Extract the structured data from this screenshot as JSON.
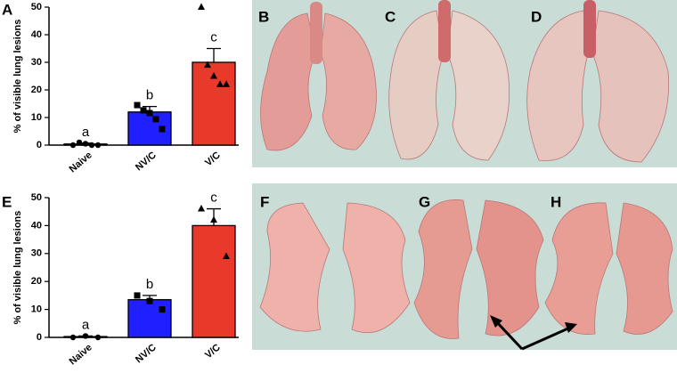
{
  "chart_data": [
    {
      "type": "bar",
      "panel_label": "A",
      "ylabel": "% of visible lung lesions",
      "categories": [
        "Naive",
        "NV/C",
        "V/C"
      ],
      "values": [
        0.4,
        12,
        30
      ],
      "errors": [
        0.3,
        2,
        5
      ],
      "colors": [
        "#ffffff",
        "#1f1fff",
        "#e8392a"
      ],
      "markers": [
        "circle",
        "square",
        "triangle"
      ],
      "letters": [
        "a",
        "b",
        "c"
      ],
      "points": [
        [
          0,
          1,
          0.5,
          0,
          0
        ],
        [
          14.5,
          12.6,
          11.6,
          9.4,
          5.8
        ],
        [
          50,
          29,
          25,
          22,
          22
        ]
      ],
      "ylim": [
        0,
        50
      ],
      "yticks": [
        0,
        10,
        20,
        30,
        40,
        50
      ]
    },
    {
      "type": "bar",
      "panel_label": "E",
      "ylabel": "% of visible lung lesions",
      "categories": [
        "Naive",
        "NV/C",
        "V/C"
      ],
      "values": [
        0.3,
        13.5,
        40
      ],
      "errors": [
        0.2,
        1.5,
        6
      ],
      "colors": [
        "#ffffff",
        "#1f1fff",
        "#e8392a"
      ],
      "markers": [
        "circle",
        "square",
        "triangle"
      ],
      "letters": [
        "a",
        "b",
        "c"
      ],
      "points": [
        [
          0,
          0.5,
          0
        ],
        [
          15,
          13,
          10
        ],
        [
          46,
          42,
          29
        ]
      ],
      "ylim": [
        0,
        50
      ],
      "yticks": [
        0,
        10,
        20,
        30,
        40,
        50
      ]
    }
  ],
  "photo_labels": [
    "B",
    "C",
    "D",
    "F",
    "G",
    "H"
  ]
}
